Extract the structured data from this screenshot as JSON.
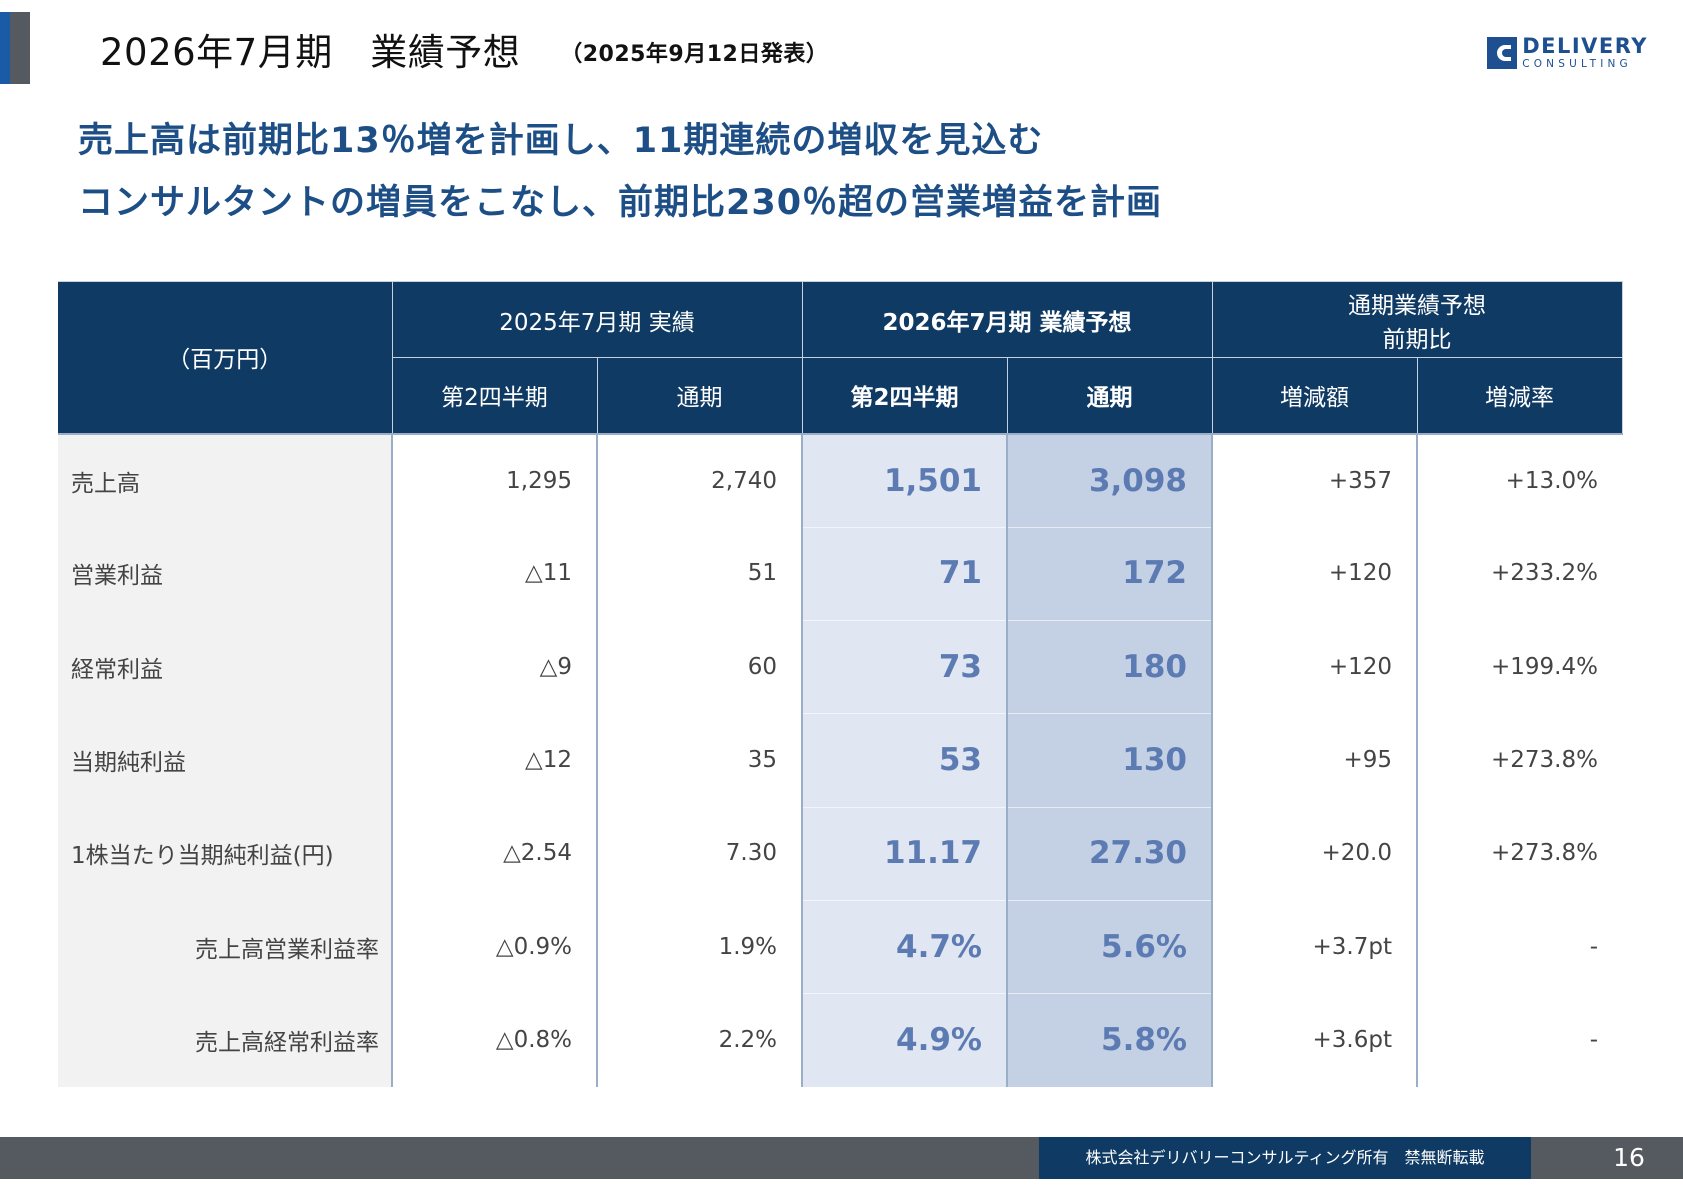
{
  "header": {
    "title": "2026年7月期　業績予想",
    "date_note": "（2025年9月12日発表）",
    "logo_line1": "DELIVERY",
    "logo_line2": "CONSULTING"
  },
  "headline": {
    "line1": "売上高は前期比13％増を計画し、11期連続の増収を見込む",
    "line2": "コンサルタントの増員をこなし、前期比230％超の営業増益を計画"
  },
  "table": {
    "unit_label": "（百万円）",
    "group_actual": "2025年7月期 実績",
    "group_forecast": "2026年7月期 業績予想",
    "group_compare_line1": "通期業績予想",
    "group_compare_line2": "前期比",
    "sub_q2_actual": "第2四半期",
    "sub_fy_actual": "通期",
    "sub_q2_forecast": "第2四半期",
    "sub_fy_forecast": "通期",
    "sub_change_amount": "増減額",
    "sub_change_rate": "増減率",
    "rows": [
      {
        "label": "売上高",
        "q2_actual": "1,295",
        "fy_actual": "2,740",
        "q2_forecast": "1,501",
        "fy_forecast": "3,098",
        "change": "+357",
        "rate": "+13.0%"
      },
      {
        "label": "営業利益",
        "q2_actual": "△11",
        "fy_actual": "51",
        "q2_forecast": "71",
        "fy_forecast": "172",
        "change": "+120",
        "rate": "+233.2%"
      },
      {
        "label": "経常利益",
        "q2_actual": "△9",
        "fy_actual": "60",
        "q2_forecast": "73",
        "fy_forecast": "180",
        "change": "+120",
        "rate": "+199.4%"
      },
      {
        "label": "当期純利益",
        "q2_actual": "△12",
        "fy_actual": "35",
        "q2_forecast": "53",
        "fy_forecast": "130",
        "change": "+95",
        "rate": "+273.8%"
      },
      {
        "label": "1株当たり当期純利益(円)",
        "q2_actual": "△2.54",
        "fy_actual": "7.30",
        "q2_forecast": "11.17",
        "fy_forecast": "27.30",
        "change": "+20.0",
        "rate": "+273.8%"
      },
      {
        "label": "売上高営業利益率",
        "q2_actual": "△0.9%",
        "fy_actual": "1.9%",
        "q2_forecast": "4.7%",
        "fy_forecast": "5.6%",
        "change": "+3.7pt",
        "rate": "-"
      },
      {
        "label": "売上高経常利益率",
        "q2_actual": "△0.8%",
        "fy_actual": "2.2%",
        "q2_forecast": "4.9%",
        "fy_forecast": "5.8%",
        "change": "+3.6pt",
        "rate": "-"
      }
    ]
  },
  "footer": {
    "copyright": "株式会社デリバリーコンサルティング所有　禁無断転載",
    "page_number": "16"
  }
}
